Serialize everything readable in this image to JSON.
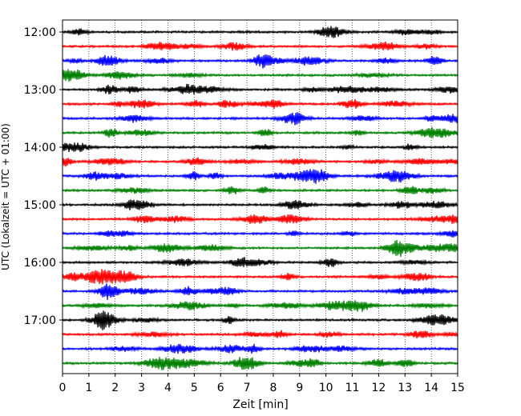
{
  "chart_data": {
    "type": "line",
    "title": "",
    "xlabel": "Zeit  [min]",
    "ylabel": "UTC (Lokalzeit = UTC + 01:00)",
    "xlim": [
      0,
      15
    ],
    "x_ticks": [
      "0",
      "1",
      "2",
      "3",
      "4",
      "5",
      "6",
      "7",
      "8",
      "9",
      "10",
      "11",
      "12",
      "13",
      "14",
      "15"
    ],
    "y_ticks": [
      "12:00",
      "13:00",
      "14:00",
      "15:00",
      "16:00",
      "17:00"
    ],
    "grid": "vertical dotted",
    "line_minutes": 15,
    "trace_colors": [
      "#000000",
      "#ff0000",
      "#0000ff",
      "#008000"
    ],
    "traces": [
      {
        "start": "12:00",
        "color": "#000000"
      },
      {
        "start": "12:15",
        "color": "#ff0000"
      },
      {
        "start": "12:30",
        "color": "#0000ff"
      },
      {
        "start": "12:45",
        "color": "#008000"
      },
      {
        "start": "13:00",
        "color": "#000000"
      },
      {
        "start": "13:15",
        "color": "#ff0000"
      },
      {
        "start": "13:30",
        "color": "#0000ff"
      },
      {
        "start": "13:45",
        "color": "#008000"
      },
      {
        "start": "14:00",
        "color": "#000000"
      },
      {
        "start": "14:15",
        "color": "#ff0000"
      },
      {
        "start": "14:30",
        "color": "#0000ff"
      },
      {
        "start": "14:45",
        "color": "#008000"
      },
      {
        "start": "15:00",
        "color": "#000000"
      },
      {
        "start": "15:15",
        "color": "#ff0000"
      },
      {
        "start": "15:30",
        "color": "#0000ff"
      },
      {
        "start": "15:45",
        "color": "#008000"
      },
      {
        "start": "16:00",
        "color": "#000000"
      },
      {
        "start": "16:15",
        "color": "#ff0000"
      },
      {
        "start": "16:30",
        "color": "#0000ff"
      },
      {
        "start": "16:45",
        "color": "#008000"
      },
      {
        "start": "17:00",
        "color": "#000000"
      },
      {
        "start": "17:15",
        "color": "#ff0000"
      },
      {
        "start": "17:30",
        "color": "#0000ff"
      },
      {
        "start": "17:45",
        "color": "#008000"
      }
    ]
  }
}
